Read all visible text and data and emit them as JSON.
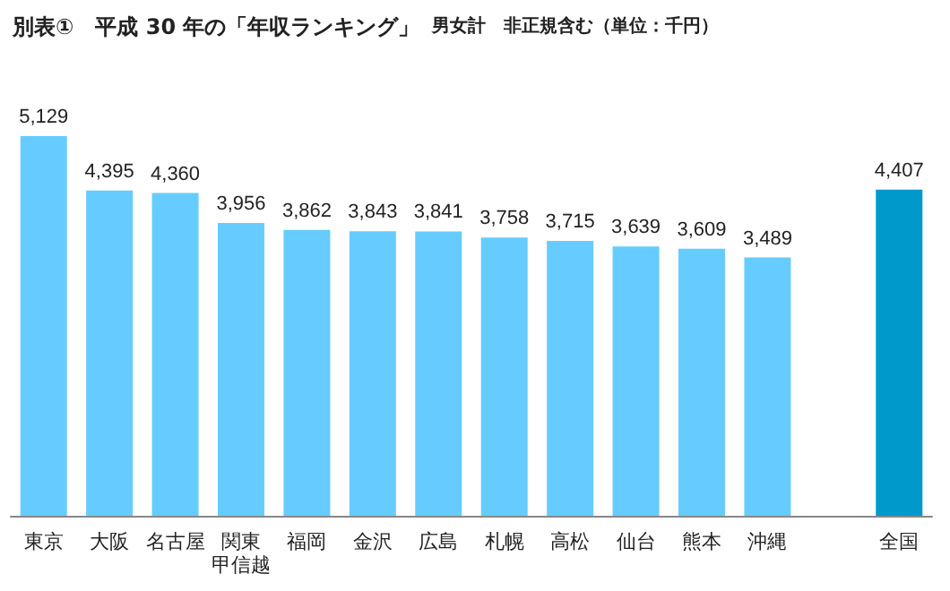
{
  "chart_data": {
    "type": "bar",
    "title": "別表①　平成 30 年の「年収ランキング」",
    "subtitle": "男女計　非正規含む（単位：千円）",
    "categories": [
      "東京",
      "大阪",
      "名古屋",
      "関東甲信越",
      "福岡",
      "金沢",
      "広島",
      "札幌",
      "高松",
      "仙台",
      "熊本",
      "沖縄",
      null,
      "全国"
    ],
    "values": [
      5129,
      4395,
      4360,
      3956,
      3862,
      3843,
      3841,
      3758,
      3715,
      3639,
      3609,
      3489,
      null,
      4407
    ],
    "colors": [
      "#66ccff",
      "#66ccff",
      "#66ccff",
      "#66ccff",
      "#66ccff",
      "#66ccff",
      "#66ccff",
      "#66ccff",
      "#66ccff",
      "#66ccff",
      "#66ccff",
      "#66ccff",
      "#66ccff",
      "#0099cc"
    ],
    "value_labels": [
      "5,129",
      "4,395",
      "4,360",
      "3,956",
      "3,862",
      "3,843",
      "3,841",
      "3,758",
      "3,715",
      "3,639",
      "3,609",
      "3,489",
      null,
      "4,407"
    ],
    "tick_labels": "x"
  }
}
